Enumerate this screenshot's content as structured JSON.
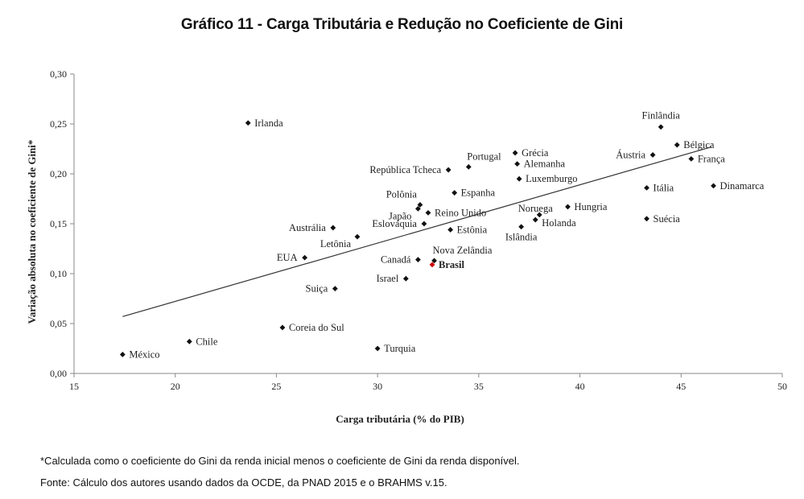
{
  "title": "Gráfico 11 - Carga Tributária e Redução no Coeficiente de Gini",
  "chart_data": {
    "type": "scatter",
    "xlabel": "Carga tributária (% do PIB)",
    "ylabel": "Variação absoluta no coeficiente de Gini*",
    "xlim": [
      15,
      50
    ],
    "ylim": [
      0,
      0.3
    ],
    "xticks": [
      "15",
      "20",
      "25",
      "30",
      "35",
      "40",
      "45",
      "50"
    ],
    "yticks": [
      "0,00",
      "0,05",
      "0,10",
      "0,15",
      "0,20",
      "0,25",
      "0,30"
    ],
    "grid": false,
    "legend": "none",
    "marker_color": "#111111",
    "highlight_color": "#cc0000",
    "trendline": {
      "x": [
        17.4,
        46.5
      ],
      "y": [
        0.057,
        0.227
      ]
    },
    "points": [
      {
        "label": "México",
        "x": 17.4,
        "y": 0.019,
        "pos": "right"
      },
      {
        "label": "Chile",
        "x": 20.7,
        "y": 0.032,
        "pos": "right"
      },
      {
        "label": "Irlanda",
        "x": 23.6,
        "y": 0.251,
        "pos": "right"
      },
      {
        "label": "Coreia do Sul",
        "x": 25.3,
        "y": 0.046,
        "pos": "right"
      },
      {
        "label": "EUA",
        "x": 26.4,
        "y": 0.116,
        "pos": "left"
      },
      {
        "label": "Austrália",
        "x": 27.8,
        "y": 0.146,
        "pos": "left"
      },
      {
        "label": "Letônia",
        "x": 29.0,
        "y": 0.137,
        "pos": "left-below"
      },
      {
        "label": "Suiça",
        "x": 27.9,
        "y": 0.085,
        "pos": "left"
      },
      {
        "label": "Turquia",
        "x": 30.0,
        "y": 0.025,
        "pos": "right"
      },
      {
        "label": "Israel",
        "x": 31.4,
        "y": 0.095,
        "pos": "left"
      },
      {
        "label": "Canadá",
        "x": 32.0,
        "y": 0.114,
        "pos": "left"
      },
      {
        "label": "Eslováquia",
        "x": 32.3,
        "y": 0.15,
        "pos": "left"
      },
      {
        "label": "Japão",
        "x": 32.0,
        "y": 0.165,
        "pos": "left-below"
      },
      {
        "label": "Polônia",
        "x": 32.1,
        "y": 0.169,
        "pos": "left-above"
      },
      {
        "label": "Reino Unido",
        "x": 32.5,
        "y": 0.161,
        "pos": "right"
      },
      {
        "label": "República Tcheca",
        "x": 33.5,
        "y": 0.204,
        "pos": "left"
      },
      {
        "label": "Portugal",
        "x": 34.5,
        "y": 0.207,
        "pos": "right-above"
      },
      {
        "label": "Espanha",
        "x": 33.8,
        "y": 0.181,
        "pos": "right"
      },
      {
        "label": "Estônia",
        "x": 33.6,
        "y": 0.144,
        "pos": "right"
      },
      {
        "label": "Nova Zelândia",
        "x": 32.8,
        "y": 0.113,
        "pos": "right-above"
      },
      {
        "label": "Brasil",
        "x": 32.7,
        "y": 0.109,
        "pos": "right",
        "highlight": true
      },
      {
        "label": "Grécia",
        "x": 36.8,
        "y": 0.221,
        "pos": "right"
      },
      {
        "label": "Alemanha",
        "x": 36.9,
        "y": 0.21,
        "pos": "right"
      },
      {
        "label": "Luxemburgo",
        "x": 37.0,
        "y": 0.195,
        "pos": "right"
      },
      {
        "label": "Noruega",
        "x": 37.8,
        "y": 0.154,
        "pos": "above"
      },
      {
        "label": "Holanda",
        "x": 38.0,
        "y": 0.159,
        "pos": "right-below"
      },
      {
        "label": "Islândia",
        "x": 37.1,
        "y": 0.147,
        "pos": "below"
      },
      {
        "label": "Hungria",
        "x": 39.4,
        "y": 0.167,
        "pos": "right"
      },
      {
        "label": "Áustria",
        "x": 43.6,
        "y": 0.219,
        "pos": "left"
      },
      {
        "label": "Finlândia",
        "x": 44.0,
        "y": 0.247,
        "pos": "above"
      },
      {
        "label": "Bélgica",
        "x": 44.8,
        "y": 0.229,
        "pos": "right"
      },
      {
        "label": "França",
        "x": 45.5,
        "y": 0.215,
        "pos": "right"
      },
      {
        "label": "Itália",
        "x": 43.3,
        "y": 0.186,
        "pos": "right"
      },
      {
        "label": "Suécia",
        "x": 43.3,
        "y": 0.155,
        "pos": "right"
      },
      {
        "label": "Dinamarca",
        "x": 46.6,
        "y": 0.188,
        "pos": "right"
      }
    ]
  },
  "notes": {
    "footnote": "*Calculada como o coeficiente do Gini da renda inicial menos o coeficiente de Gini da renda disponível.",
    "source": "Fonte: Cálculo dos autores usando dados da OCDE, da PNAD 2015 e o BRAHMS v.15."
  }
}
